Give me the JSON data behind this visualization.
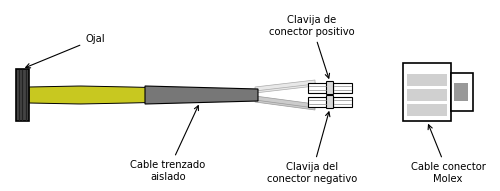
{
  "fig_width": 5.0,
  "fig_height": 1.91,
  "dpi": 100,
  "bg_color": "#ffffff",
  "labels": {
    "cable_trenzado": "Cable trenzado\naislado",
    "clavija_negativo": "Clavija del\nconector negativo",
    "cable_conector": "Cable conector\nMolex",
    "ojal": "Ojal",
    "clavija_positivo": "Clavija de\nconector positivo"
  },
  "colors": {
    "black": "#000000",
    "dark_gray": "#444444",
    "jacket_gray": "#777777",
    "wire_light": "#cccccc",
    "wire_white": "#e8e8e8",
    "yellow_green": "#c8c820",
    "light_gray_fill": "#d8d8d8",
    "medium_gray": "#999999",
    "connector_fill": "#e0e0e0",
    "molex_slot": "#d0d0d0"
  }
}
